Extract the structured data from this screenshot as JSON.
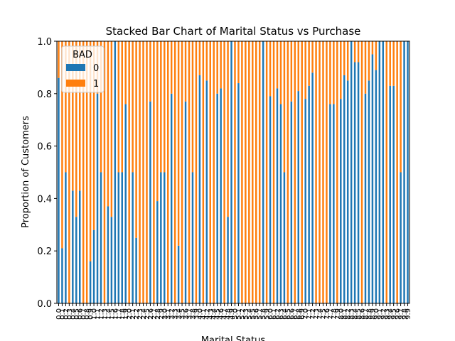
{
  "chart_data": {
    "type": "bar",
    "stacked": true,
    "title": "Stacked Bar Chart of Marital Status vs Purchase",
    "xlabel": "Marital Status",
    "ylabel": "Proportion of Customers",
    "ylim": [
      0,
      1.0
    ],
    "yticks": [
      "0.0",
      "0.2",
      "0.4",
      "0.6",
      "0.8",
      "1.0"
    ],
    "legend": {
      "title": "BAD",
      "placement": "top-left",
      "entries": [
        "0",
        "1"
      ]
    },
    "colors": {
      "0": "#1f77b4",
      "1": "#ff7f0e"
    },
    "grid": false,
    "categories": [
      "0.0",
      "0.1",
      "0.2",
      "0.3",
      "0.4",
      "0.5",
      "0.6",
      "0.7",
      "0.8",
      "0.9",
      "1.0",
      "1.1",
      "1.2",
      "1.3",
      "1.4",
      "1.5",
      "1.6",
      "1.7",
      "1.8",
      "1.9",
      "2.0",
      "2.1",
      "2.2",
      "2.3",
      "2.4",
      "2.5",
      "2.6",
      "2.7",
      "2.8",
      "2.9",
      "3.0",
      "3.1",
      "3.2",
      "3.3",
      "3.4",
      "3.5",
      "3.6",
      "3.7",
      "3.8",
      "3.9",
      "4.0",
      "4.1",
      "4.2",
      "4.3",
      "4.4",
      "4.5",
      "4.6",
      "4.7",
      "4.8",
      "4.9",
      "5.0",
      "5.1",
      "5.2",
      "5.3",
      "5.4",
      "5.5",
      "5.6",
      "5.7",
      "5.8",
      "5.9",
      "6.0",
      "6.1",
      "6.2",
      "6.3",
      "6.4",
      "6.5",
      "6.6",
      "6.7",
      "6.8",
      "6.9",
      "7.0",
      "7.1",
      "7.2",
      "7.3",
      "7.4",
      "7.5",
      "7.6",
      "7.7",
      "7.8",
      "7.9",
      "8.0",
      "8.1",
      "8.2",
      "8.3",
      "8.4",
      "8.5",
      "8.6",
      "8.7",
      "8.8",
      "8.9",
      "9.0",
      "9.1",
      "9.2",
      "9.3",
      "9.4",
      "9.5",
      "9.6",
      "9.7",
      "9.8",
      "9.9"
    ],
    "series": [
      {
        "name": "0",
        "values": [
          0.86,
          0.21,
          0.5,
          0.0,
          0.43,
          0.33,
          0.43,
          0.0,
          0.0,
          0.16,
          0.28,
          0.8,
          0.5,
          0.0,
          0.37,
          0.33,
          1.0,
          0.5,
          0.5,
          0.76,
          0.0,
          0.5,
          0.25,
          0.0,
          0.0,
          0.0,
          0.77,
          0.0,
          0.39,
          0.5,
          0.5,
          0.0,
          0.8,
          0.0,
          0.22,
          0.0,
          0.77,
          0.0,
          0.5,
          0.0,
          0.87,
          0.0,
          0.85,
          0.0,
          0.0,
          0.8,
          0.82,
          0.0,
          0.33,
          1.0,
          0.0,
          0.84,
          0.0,
          0.0,
          0.0,
          0.0,
          0.0,
          0.0,
          1.0,
          0.0,
          0.79,
          0.0,
          0.82,
          0.76,
          0.5,
          0.0,
          0.77,
          0.0,
          0.81,
          0.0,
          0.78,
          0.83,
          0.88,
          0.0,
          0.0,
          0.0,
          0.0,
          0.76,
          0.76,
          0.0,
          0.78,
          0.87,
          0.85,
          1.0,
          0.92,
          0.92,
          0.0,
          0.8,
          0.85,
          0.95,
          0.89,
          1.0,
          1.0,
          0.0,
          0.83,
          0.83,
          0.0,
          0.5,
          1.0,
          1.0
        ]
      },
      {
        "name": "1",
        "values": [
          0.14,
          0.79,
          0.5,
          1.0,
          0.57,
          0.67,
          0.57,
          1.0,
          1.0,
          0.84,
          0.72,
          0.2,
          0.5,
          1.0,
          0.63,
          0.67,
          0.0,
          0.5,
          0.5,
          0.24,
          1.0,
          0.5,
          0.75,
          1.0,
          1.0,
          1.0,
          0.23,
          1.0,
          0.61,
          0.5,
          0.5,
          1.0,
          0.2,
          1.0,
          0.78,
          1.0,
          0.23,
          1.0,
          0.5,
          1.0,
          0.13,
          1.0,
          0.15,
          1.0,
          1.0,
          0.2,
          0.18,
          1.0,
          0.67,
          0.0,
          1.0,
          0.16,
          1.0,
          1.0,
          1.0,
          1.0,
          1.0,
          1.0,
          0.0,
          1.0,
          0.21,
          1.0,
          0.18,
          0.24,
          0.5,
          1.0,
          0.23,
          1.0,
          0.19,
          1.0,
          0.22,
          0.17,
          0.12,
          1.0,
          1.0,
          1.0,
          1.0,
          0.24,
          0.24,
          1.0,
          0.22,
          0.13,
          0.15,
          0.0,
          0.08,
          0.08,
          1.0,
          0.2,
          0.15,
          0.05,
          0.11,
          0.0,
          0.0,
          1.0,
          0.17,
          0.17,
          1.0,
          0.5,
          0.0,
          0.0
        ]
      }
    ]
  }
}
